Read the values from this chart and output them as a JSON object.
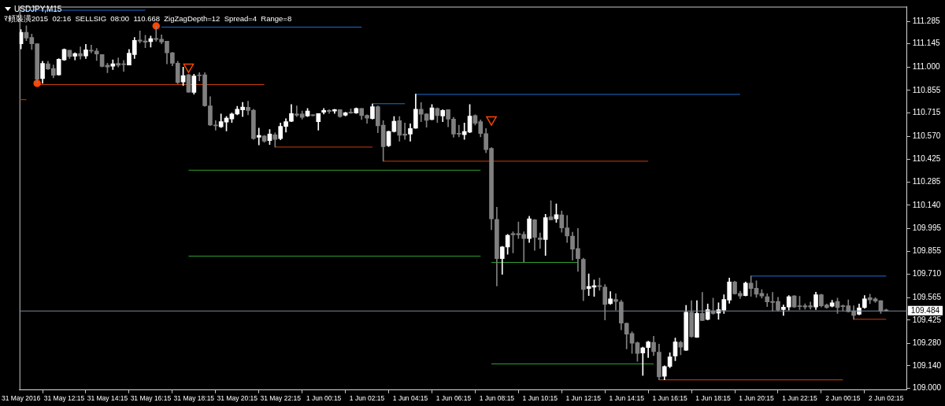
{
  "chart_data": {
    "type": "candlestick",
    "title": "USDJPY,M15",
    "subtitle": "ﾏ頼裝潢2015  02:16  SELLSIG  08:00  110.668  ZigZagDepth=12  Spread=4  Range=8",
    "xlim": [
      "2016-05-31T10:11",
      "2016-06-02T03:13"
    ],
    "xticks": [
      {
        "value": "2016-05-31T10:15",
        "label": "31 May 2016"
      },
      {
        "value": "2016-05-31T12:15",
        "label": "31 May 12:15"
      },
      {
        "value": "2016-05-31T14:15",
        "label": "31 May 14:15"
      },
      {
        "value": "2016-05-31T16:15",
        "label": "31 May 16:15"
      },
      {
        "value": "2016-05-31T18:15",
        "label": "31 May 18:15"
      },
      {
        "value": "2016-05-31T20:15",
        "label": "31 May 20:15"
      },
      {
        "value": "2016-05-31T22:15",
        "label": "31 May 22:15"
      },
      {
        "value": "2016-06-01T00:15",
        "label": "1 Jun 00:15"
      },
      {
        "value": "2016-06-01T02:15",
        "label": "1 Jun 02:15"
      },
      {
        "value": "2016-06-01T04:15",
        "label": "1 Jun 04:15"
      },
      {
        "value": "2016-06-01T06:15",
        "label": "1 Jun 06:15"
      },
      {
        "value": "2016-06-01T08:15",
        "label": "1 Jun 08:15"
      },
      {
        "value": "2016-06-01T10:15",
        "label": "1 Jun 10:15"
      },
      {
        "value": "2016-06-01T12:15",
        "label": "1 Jun 12:15"
      },
      {
        "value": "2016-06-01T14:15",
        "label": "1 Jun 14:15"
      },
      {
        "value": "2016-06-01T16:15",
        "label": "1 Jun 16:15"
      },
      {
        "value": "2016-06-01T18:15",
        "label": "1 Jun 18:15"
      },
      {
        "value": "2016-06-01T20:15",
        "label": "1 Jun 20:15"
      },
      {
        "value": "2016-06-01T22:15",
        "label": "1 Jun 22:15"
      },
      {
        "value": "2016-06-02T00:15",
        "label": "2 Jun 00:15"
      },
      {
        "value": "2016-06-02T02:15",
        "label": "2 Jun 02:15"
      }
    ],
    "ylim": [
      108.989,
      111.376
    ],
    "yticks": [
      {
        "value": 109,
        "label": "109.000"
      },
      {
        "value": 109.14,
        "label": "109.140"
      },
      {
        "value": 109.28,
        "label": "109.280"
      },
      109.425,
      109.565,
      {
        "value": 109.71,
        "label": "109.710"
      },
      109.855,
      109.995,
      {
        "value": 110.14,
        "label": "110.140"
      },
      110.285,
      110.425,
      {
        "value": 110.57,
        "label": "110.570"
      },
      110.715,
      110.855,
      {
        "value": 111,
        "label": "111.000"
      },
      111.145,
      111.285
    ],
    "ref_lines": [
      {
        "axis": "y",
        "value": 109.484,
        "label": "109.484",
        "color": "#7a8a9a"
      }
    ],
    "series": [
      {
        "type": "candlestick",
        "x": [
          "2016-05-31T10:15",
          "2016-05-31T10:30",
          "2016-05-31T10:45",
          "2016-05-31T11:00",
          "2016-05-31T11:15",
          "2016-05-31T11:30",
          "2016-05-31T11:45",
          "2016-05-31T12:00",
          "2016-05-31T12:15",
          "2016-05-31T12:30",
          "2016-05-31T12:45",
          "2016-05-31T13:00",
          "2016-05-31T13:15",
          "2016-05-31T13:30",
          "2016-05-31T13:45",
          "2016-05-31T14:00",
          "2016-05-31T14:15",
          "2016-05-31T14:30",
          "2016-05-31T14:45",
          "2016-05-31T15:00",
          "2016-05-31T15:15",
          "2016-05-31T15:30",
          "2016-05-31T15:45",
          "2016-05-31T16:00",
          "2016-05-31T16:15",
          "2016-05-31T16:30",
          "2016-05-31T16:45",
          "2016-05-31T17:00",
          "2016-05-31T17:15",
          "2016-05-31T17:30",
          "2016-05-31T17:45",
          "2016-05-31T18:00",
          "2016-05-31T18:15",
          "2016-05-31T18:30",
          "2016-05-31T18:45",
          "2016-05-31T19:00",
          "2016-05-31T19:15",
          "2016-05-31T19:30",
          "2016-05-31T19:45",
          "2016-05-31T20:00",
          "2016-05-31T20:15",
          "2016-05-31T20:30",
          "2016-05-31T20:45",
          "2016-05-31T21:00",
          "2016-05-31T21:15",
          "2016-05-31T21:30",
          "2016-05-31T21:45",
          "2016-05-31T22:00",
          "2016-05-31T22:15",
          "2016-05-31T22:30",
          "2016-05-31T22:45",
          "2016-05-31T23:00",
          "2016-05-31T23:15",
          "2016-05-31T23:30",
          "2016-05-31T23:45",
          "2016-06-01T00:00",
          "2016-06-01T00:15",
          "2016-06-01T00:30",
          "2016-06-01T00:45",
          "2016-06-01T01:00",
          "2016-06-01T01:15",
          "2016-06-01T01:30",
          "2016-06-01T01:45",
          "2016-06-01T02:00",
          "2016-06-01T02:15",
          "2016-06-01T02:30",
          "2016-06-01T02:45",
          "2016-06-01T03:00",
          "2016-06-01T03:15",
          "2016-06-01T03:30",
          "2016-06-01T03:45",
          "2016-06-01T04:00",
          "2016-06-01T04:15",
          "2016-06-01T04:30",
          "2016-06-01T04:45",
          "2016-06-01T05:00",
          "2016-06-01T05:15",
          "2016-06-01T05:30",
          "2016-06-01T05:45",
          "2016-06-01T06:00",
          "2016-06-01T06:15",
          "2016-06-01T06:30",
          "2016-06-01T06:45",
          "2016-06-01T07:00",
          "2016-06-01T07:15",
          "2016-06-01T07:30",
          "2016-06-01T07:45",
          "2016-06-01T08:00",
          "2016-06-01T08:15",
          "2016-06-01T08:30",
          "2016-06-01T08:45",
          "2016-06-01T09:00",
          "2016-06-01T09:15",
          "2016-06-01T09:30",
          "2016-06-01T09:45",
          "2016-06-01T10:00",
          "2016-06-01T10:15",
          "2016-06-01T10:30",
          "2016-06-01T10:45",
          "2016-06-01T11:00",
          "2016-06-01T11:15",
          "2016-06-01T11:30",
          "2016-06-01T11:45",
          "2016-06-01T12:00",
          "2016-06-01T12:15",
          "2016-06-01T12:30",
          "2016-06-01T12:45",
          "2016-06-01T13:00",
          "2016-06-01T13:15",
          "2016-06-01T13:30",
          "2016-06-01T13:45",
          "2016-06-01T14:00",
          "2016-06-01T14:15",
          "2016-06-01T14:30",
          "2016-06-01T14:45",
          "2016-06-01T15:00",
          "2016-06-01T15:15",
          "2016-06-01T15:30",
          "2016-06-01T15:45",
          "2016-06-01T16:00",
          "2016-06-01T16:15",
          "2016-06-01T16:30",
          "2016-06-01T16:45",
          "2016-06-01T17:00",
          "2016-06-01T17:15",
          "2016-06-01T17:30",
          "2016-06-01T17:45",
          "2016-06-01T18:00",
          "2016-06-01T18:15",
          "2016-06-01T18:30",
          "2016-06-01T18:45",
          "2016-06-01T19:00",
          "2016-06-01T19:15",
          "2016-06-01T19:30",
          "2016-06-01T19:45",
          "2016-06-01T20:00",
          "2016-06-01T20:15",
          "2016-06-01T20:30",
          "2016-06-01T20:45",
          "2016-06-01T21:00",
          "2016-06-01T21:15",
          "2016-06-01T21:30",
          "2016-06-01T21:45",
          "2016-06-01T22:00",
          "2016-06-01T22:15",
          "2016-06-01T22:30",
          "2016-06-01T22:45",
          "2016-06-01T23:00",
          "2016-06-01T23:15",
          "2016-06-01T23:30",
          "2016-06-01T23:45",
          "2016-06-02T00:00",
          "2016-06-02T00:15",
          "2016-06-02T00:30",
          "2016-06-02T00:45",
          "2016-06-02T01:00",
          "2016-06-02T01:15",
          "2016-06-02T01:30",
          "2016-06-02T01:45",
          "2016-06-02T02:00",
          "2016-06-02T02:15"
        ],
        "ohlc": [
          [
            111.145,
            111.233,
            111.113,
            111.217
          ],
          [
            111.217,
            111.257,
            111.164,
            111.18
          ],
          [
            111.185,
            111.206,
            111.11,
            111.145
          ],
          [
            111.145,
            111.145,
            110.904,
            110.925
          ],
          [
            110.928,
            111.036,
            110.899,
            111.023
          ],
          [
            111.02,
            111.036,
            110.984,
            110.988
          ],
          [
            110.991,
            111.013,
            110.933,
            110.949
          ],
          [
            110.952,
            111.052,
            110.949,
            111.049
          ],
          [
            111.044,
            111.113,
            111.041,
            111.11
          ],
          [
            111.105,
            111.105,
            111.053,
            111.065
          ],
          [
            111.068,
            111.089,
            111.045,
            111.084
          ],
          [
            111.084,
            111.126,
            111.049,
            111.069
          ],
          [
            111.069,
            111.142,
            111.053,
            111.108
          ],
          [
            111.105,
            111.137,
            111.089,
            111.1
          ],
          [
            111.1,
            111.116,
            111.041,
            111.081
          ],
          [
            111.078,
            111.078,
            111.0,
            111.004
          ],
          [
            111.012,
            111.024,
            110.965,
            111.0
          ],
          [
            111.005,
            111.045,
            110.984,
            111.021
          ],
          [
            111.023,
            111.057,
            111.0,
            111.012
          ],
          [
            111.02,
            111.041,
            110.973,
            111.015
          ],
          [
            111.013,
            111.11,
            111.013,
            111.086
          ],
          [
            111.078,
            111.185,
            111.053,
            111.166
          ],
          [
            111.169,
            111.225,
            111.15,
            111.161
          ],
          [
            111.163,
            111.198,
            111.121,
            111.155
          ],
          [
            111.159,
            111.193,
            111.124,
            111.177
          ],
          [
            111.179,
            111.253,
            111.161,
            111.172
          ],
          [
            111.174,
            111.201,
            111.145,
            111.156
          ],
          [
            111.161,
            111.161,
            111.02,
            111.089
          ],
          [
            111.089,
            111.092,
            111.008,
            111.024
          ],
          [
            111.024,
            111.036,
            110.896,
            110.904
          ],
          [
            110.907,
            111.0,
            110.885,
            110.947
          ],
          [
            110.952,
            110.955,
            110.843,
            110.844
          ],
          [
            110.843,
            110.955,
            110.832,
            110.944
          ],
          [
            110.949,
            110.965,
            110.915,
            110.946
          ],
          [
            110.952,
            110.965,
            110.756,
            110.759
          ],
          [
            110.759,
            110.816,
            110.636,
            110.639
          ],
          [
            110.64,
            110.666,
            110.607,
            110.634
          ],
          [
            110.628,
            110.708,
            110.623,
            110.66
          ],
          [
            110.658,
            110.692,
            110.602,
            110.682
          ],
          [
            110.677,
            110.714,
            110.655,
            110.708
          ],
          [
            110.708,
            110.756,
            110.703,
            110.738
          ],
          [
            110.734,
            110.78,
            110.692,
            110.751
          ],
          [
            110.75,
            110.788,
            110.703,
            110.73
          ],
          [
            110.732,
            110.738,
            110.55,
            110.555
          ],
          [
            110.563,
            110.62,
            110.515,
            110.575
          ],
          [
            110.571,
            110.575,
            110.531,
            110.539
          ],
          [
            110.542,
            110.611,
            110.518,
            110.583
          ],
          [
            110.579,
            110.591,
            110.502,
            110.55
          ],
          [
            110.555,
            110.652,
            110.547,
            110.631
          ],
          [
            110.631,
            110.679,
            110.595,
            110.66
          ],
          [
            110.663,
            110.767,
            110.66,
            110.711
          ],
          [
            110.708,
            110.759,
            110.692,
            110.701
          ],
          [
            110.708,
            110.727,
            110.676,
            110.687
          ],
          [
            110.695,
            110.743,
            110.692,
            110.727
          ],
          [
            110.698,
            110.703,
            110.695,
            110.698
          ],
          [
            110.66,
            110.711,
            110.607,
            110.711
          ],
          [
            110.719,
            110.743,
            110.708,
            110.73
          ],
          [
            110.73,
            110.735,
            110.711,
            110.724
          ],
          [
            110.726,
            110.738,
            110.711,
            110.735
          ],
          [
            110.735,
            110.735,
            110.687,
            110.692
          ],
          [
            110.7,
            110.719,
            110.695,
            110.716
          ],
          [
            110.719,
            110.74,
            110.711,
            110.714
          ],
          [
            110.714,
            110.746,
            110.711,
            110.743
          ],
          [
            110.743,
            110.743,
            110.674,
            110.698
          ],
          [
            110.7,
            110.703,
            110.65,
            110.682
          ],
          [
            110.679,
            110.771,
            110.676,
            110.754
          ],
          [
            110.754,
            110.759,
            110.591,
            110.634
          ],
          [
            110.639,
            110.666,
            110.414,
            110.505
          ],
          [
            110.51,
            110.602,
            110.505,
            110.599
          ],
          [
            110.599,
            110.692,
            110.595,
            110.663
          ],
          [
            110.666,
            110.692,
            110.539,
            110.575
          ],
          [
            110.583,
            110.652,
            110.55,
            110.575
          ],
          [
            110.583,
            110.647,
            110.539,
            110.618
          ],
          [
            110.62,
            110.832,
            110.618,
            110.738
          ],
          [
            110.738,
            110.779,
            110.66,
            110.706
          ],
          [
            110.708,
            110.711,
            110.626,
            110.668
          ],
          [
            110.674,
            110.767,
            110.671,
            110.746
          ],
          [
            110.743,
            110.746,
            110.655,
            110.698
          ],
          [
            110.695,
            110.735,
            110.66,
            110.73
          ],
          [
            110.735,
            110.735,
            110.628,
            110.676
          ],
          [
            110.676,
            110.687,
            110.563,
            110.583
          ],
          [
            110.587,
            110.639,
            110.566,
            110.583
          ],
          [
            110.579,
            110.652,
            110.55,
            110.599
          ],
          [
            110.595,
            110.767,
            110.591,
            110.695
          ],
          [
            110.698,
            110.703,
            110.639,
            110.65
          ],
          [
            110.66,
            110.671,
            110.566,
            110.587
          ],
          [
            110.586,
            110.618,
            110.467,
            110.486
          ],
          [
            110.494,
            110.499,
            109.988,
            110.055
          ],
          [
            110.052,
            110.128,
            109.638,
            109.808
          ],
          [
            109.808,
            109.884,
            109.71,
            109.88
          ],
          [
            109.88,
            109.959,
            109.835,
            109.953
          ],
          [
            109.964,
            109.975,
            109.843,
            109.956
          ],
          [
            109.964,
            110.036,
            109.932,
            109.956
          ],
          [
            109.959,
            109.975,
            109.784,
            109.932
          ],
          [
            109.932,
            110.072,
            109.908,
            110.055
          ],
          [
            110.049,
            110.052,
            109.859,
            109.94
          ],
          [
            109.937,
            109.967,
            109.871,
            109.927
          ],
          [
            109.927,
            110.084,
            109.827,
            110.063
          ],
          [
            110.068,
            110.168,
            110.049,
            110.049
          ],
          [
            110.055,
            110.149,
            110.033,
            110.081
          ],
          [
            110.08,
            110.104,
            109.972,
            109.999
          ],
          [
            109.999,
            110.076,
            109.908,
            109.948
          ],
          [
            109.948,
            109.972,
            109.798,
            109.867
          ],
          [
            109.871,
            109.996,
            109.728,
            109.808
          ],
          [
            109.803,
            109.811,
            109.546,
            109.615
          ],
          [
            109.622,
            109.712,
            109.578,
            109.634
          ],
          [
            109.63,
            109.675,
            109.573,
            109.639
          ],
          [
            109.639,
            109.687,
            109.61,
            109.634
          ],
          [
            109.63,
            109.646,
            109.426,
            109.522
          ],
          [
            109.527,
            109.602,
            109.522,
            109.557
          ],
          [
            109.554,
            109.589,
            109.487,
            109.541
          ],
          [
            109.538,
            109.549,
            109.364,
            109.406
          ],
          [
            109.405,
            109.406,
            109.246,
            109.337
          ],
          [
            109.342,
            109.353,
            109.217,
            109.281
          ],
          [
            109.284,
            109.289,
            109.168,
            109.217
          ],
          [
            109.22,
            109.257,
            109.08,
            109.252
          ],
          [
            109.254,
            109.294,
            109.192,
            109.289
          ],
          [
            109.286,
            109.324,
            109.204,
            109.228
          ],
          [
            109.225,
            109.276,
            109.053,
            109.072
          ],
          [
            109.075,
            109.141,
            109.053,
            109.136
          ],
          [
            109.136,
            109.221,
            109.128,
            109.196
          ],
          [
            109.201,
            109.313,
            109.172,
            109.289
          ],
          [
            109.286,
            109.294,
            109.209,
            109.257
          ],
          [
            109.237,
            109.517,
            109.236,
            109.474
          ],
          [
            109.474,
            109.546,
            109.318,
            109.321
          ],
          [
            109.318,
            109.546,
            109.316,
            109.466
          ],
          [
            109.466,
            109.597,
            109.422,
            109.422
          ],
          [
            109.429,
            109.525,
            109.426,
            109.49
          ],
          [
            109.482,
            109.562,
            109.461,
            109.466
          ],
          [
            109.469,
            109.533,
            109.429,
            109.49
          ],
          [
            109.487,
            109.583,
            109.466,
            109.554
          ],
          [
            109.549,
            109.687,
            109.53,
            109.663
          ],
          [
            109.663,
            109.667,
            109.586,
            109.589
          ],
          [
            109.591,
            109.605,
            109.559,
            109.575
          ],
          [
            109.578,
            109.663,
            109.575,
            109.655
          ],
          [
            109.655,
            109.699,
            109.573,
            109.622
          ],
          [
            109.623,
            109.67,
            109.567,
            109.586
          ],
          [
            109.591,
            109.615,
            109.562,
            109.575
          ],
          [
            109.57,
            109.589,
            109.509,
            109.538
          ],
          [
            109.541,
            109.597,
            109.479,
            109.535
          ],
          [
            109.541,
            109.567,
            109.479,
            109.487
          ],
          [
            109.49,
            109.519,
            109.454,
            109.506
          ],
          [
            109.506,
            109.578,
            109.487,
            109.57
          ],
          [
            109.575,
            109.578,
            109.503,
            109.506
          ],
          [
            109.514,
            109.573,
            109.49,
            109.509
          ],
          [
            109.514,
            109.527,
            109.493,
            109.506
          ],
          [
            109.514,
            109.538,
            109.493,
            109.506
          ],
          [
            109.506,
            109.599,
            109.49,
            109.583
          ],
          [
            109.583,
            109.586,
            109.506,
            109.514
          ],
          [
            109.519,
            109.525,
            109.498,
            109.503
          ],
          [
            109.511,
            109.549,
            109.506,
            109.533
          ],
          [
            109.541,
            109.562,
            109.466,
            109.503
          ],
          [
            109.514,
            109.519,
            109.482,
            109.509
          ],
          [
            109.514,
            109.551,
            109.474,
            109.477
          ],
          [
            109.482,
            109.514,
            109.429,
            109.454
          ],
          [
            109.461,
            109.525,
            109.458,
            109.501
          ],
          [
            109.503,
            109.578,
            109.498,
            109.557
          ],
          [
            109.565,
            109.586,
            109.527,
            109.551
          ],
          [
            109.557,
            109.565,
            109.535,
            109.543
          ],
          [
            109.546,
            109.546,
            109.466,
            109.482
          ],
          [
            109.487,
            109.493,
            109.479,
            109.484
          ]
        ],
        "colors": [
          "#ffffff",
          "#808080",
          "#808080",
          "#808080",
          "#ffffff",
          "#808080",
          "#808080",
          "#ffffff",
          "#ffffff",
          "#808080",
          "#ffffff",
          "#808080",
          "#ffffff",
          "#808080",
          "#808080",
          "#808080",
          "#808080",
          "#ffffff",
          "#808080",
          "#808080",
          "#ffffff",
          "#ffffff",
          "#808080",
          "#808080",
          "#ffffff",
          "#808080",
          "#808080",
          "#808080",
          "#808080",
          "#808080",
          "#ffffff",
          "#808080",
          "#ffffff",
          "#808080",
          "#808080",
          "#808080",
          "#808080",
          "#ffffff",
          "#ffffff",
          "#ffffff",
          "#ffffff",
          "#ffffff",
          "#808080",
          "#808080",
          "#ffffff",
          "#808080",
          "#ffffff",
          "#808080",
          "#ffffff",
          "#ffffff",
          "#ffffff",
          "#808080",
          "#808080",
          "#ffffff",
          "#808080",
          "#ffffff",
          "#ffffff",
          "#808080",
          "#ffffff",
          "#808080",
          "#ffffff",
          "#808080",
          "#ffffff",
          "#808080",
          "#808080",
          "#ffffff",
          "#808080",
          "#808080",
          "#ffffff",
          "#ffffff",
          "#808080",
          "#808080",
          "#ffffff",
          "#ffffff",
          "#808080",
          "#808080",
          "#ffffff",
          "#808080",
          "#ffffff",
          "#808080",
          "#808080",
          "#808080",
          "#ffffff",
          "#ffffff",
          "#808080",
          "#808080",
          "#808080",
          "#808080",
          "#808080",
          "#ffffff",
          "#ffffff",
          "#808080",
          "#808080",
          "#808080",
          "#ffffff",
          "#808080",
          "#808080",
          "#ffffff",
          "#808080",
          "#ffffff",
          "#808080",
          "#808080",
          "#808080",
          "#808080",
          "#808080",
          "#ffffff",
          "#ffffff",
          "#808080",
          "#808080",
          "#ffffff",
          "#808080",
          "#808080",
          "#808080",
          "#808080",
          "#808080",
          "#ffffff",
          "#ffffff",
          "#808080",
          "#808080",
          "#ffffff",
          "#ffffff",
          "#ffffff",
          "#808080",
          "#ffffff",
          "#808080",
          "#ffffff",
          "#808080",
          "#ffffff",
          "#808080",
          "#ffffff",
          "#ffffff",
          "#ffffff",
          "#808080",
          "#808080",
          "#ffffff",
          "#808080",
          "#808080",
          "#808080",
          "#808080",
          "#808080",
          "#808080",
          "#ffffff",
          "#ffffff",
          "#808080",
          "#808080",
          "#808080",
          "#808080",
          "#ffffff",
          "#808080",
          "#808080",
          "#ffffff",
          "#808080",
          "#808080",
          "#808080",
          "#808080",
          "#ffffff",
          "#ffffff",
          "#808080",
          "#808080",
          "#808080",
          "#808080"
        ]
      },
      {
        "type": "line",
        "color": "#1f6fd1",
        "x": [
          "2016-05-31T10:15",
          "2016-05-31T16:00"
        ],
        "values": [
          111.354,
          111.354
        ]
      },
      {
        "type": "line",
        "color": "#1f6fd1",
        "x": [
          "2016-05-31T16:45",
          "2016-06-01T02:00"
        ],
        "values": [
          111.249,
          111.249
        ]
      },
      {
        "type": "line",
        "color": "#c83c0a",
        "x": [
          "2016-05-31T11:00",
          "2016-05-31T21:30"
        ],
        "values": [
          110.891,
          110.891
        ]
      },
      {
        "type": "line",
        "color": "#c83c0a",
        "x": [
          "2016-05-31T10:11",
          "2016-05-31T10:30"
        ],
        "values": [
          110.797,
          110.797
        ]
      },
      {
        "type": "line",
        "color": "#c83c0a",
        "x": [
          "2016-05-31T22:00",
          "2016-06-01T02:30"
        ],
        "values": [
          110.502,
          110.502
        ]
      },
      {
        "type": "line",
        "color": "#1f6fd1",
        "x": [
          "2016-06-01T02:30",
          "2016-06-01T04:00"
        ],
        "values": [
          110.772,
          110.772
        ]
      },
      {
        "type": "line",
        "color": "#1f6fd1",
        "x": [
          "2016-06-01T04:30",
          "2016-06-01T19:30"
        ],
        "values": [
          110.83,
          110.83
        ]
      },
      {
        "type": "line",
        "color": "#c83c0a",
        "x": [
          "2016-06-01T03:00",
          "2016-06-01T15:15"
        ],
        "values": [
          110.414,
          110.414
        ]
      },
      {
        "type": "line",
        "color": "#2ea02e",
        "x": [
          "2016-05-31T18:00",
          "2016-06-01T07:30"
        ],
        "values": [
          110.358,
          110.358
        ]
      },
      {
        "type": "line",
        "color": "#2ea02e",
        "x": [
          "2016-05-31T18:00",
          "2016-06-01T07:30"
        ],
        "values": [
          109.823,
          109.823
        ]
      },
      {
        "type": "line",
        "color": "#2ea02e",
        "x": [
          "2016-06-01T08:00",
          "2016-06-01T12:00"
        ],
        "values": [
          109.784,
          109.784
        ]
      },
      {
        "type": "line",
        "color": "#2ea02e",
        "x": [
          "2016-06-01T08:00",
          "2016-06-01T15:30"
        ],
        "values": [
          109.152,
          109.152
        ]
      },
      {
        "type": "line",
        "color": "#e03c00",
        "x": [
          "2016-06-01T15:45",
          "2016-06-02T00:15"
        ],
        "values": [
          109.053,
          109.053
        ]
      },
      {
        "type": "line",
        "color": "#1f6fd1",
        "x": [
          "2016-06-01T20:00",
          "2016-06-02T02:15"
        ],
        "values": [
          109.699,
          109.699
        ]
      },
      {
        "type": "line",
        "color": "#c83c0a",
        "x": [
          "2016-06-02T00:45",
          "2016-06-02T02:15"
        ],
        "values": [
          109.43,
          109.43
        ]
      },
      {
        "type": "scatter",
        "marker": "circle",
        "color": "#ff4500",
        "x": [
          "2016-05-31T11:00",
          "2016-05-31T16:30"
        ],
        "values": [
          110.899,
          111.256
        ]
      },
      {
        "type": "scatter",
        "marker": "triangle",
        "color": "#ff4500",
        "x": [
          "2016-05-31T18:00",
          "2016-06-01T08:00"
        ],
        "values": [
          111.001,
          110.673
        ]
      }
    ]
  }
}
